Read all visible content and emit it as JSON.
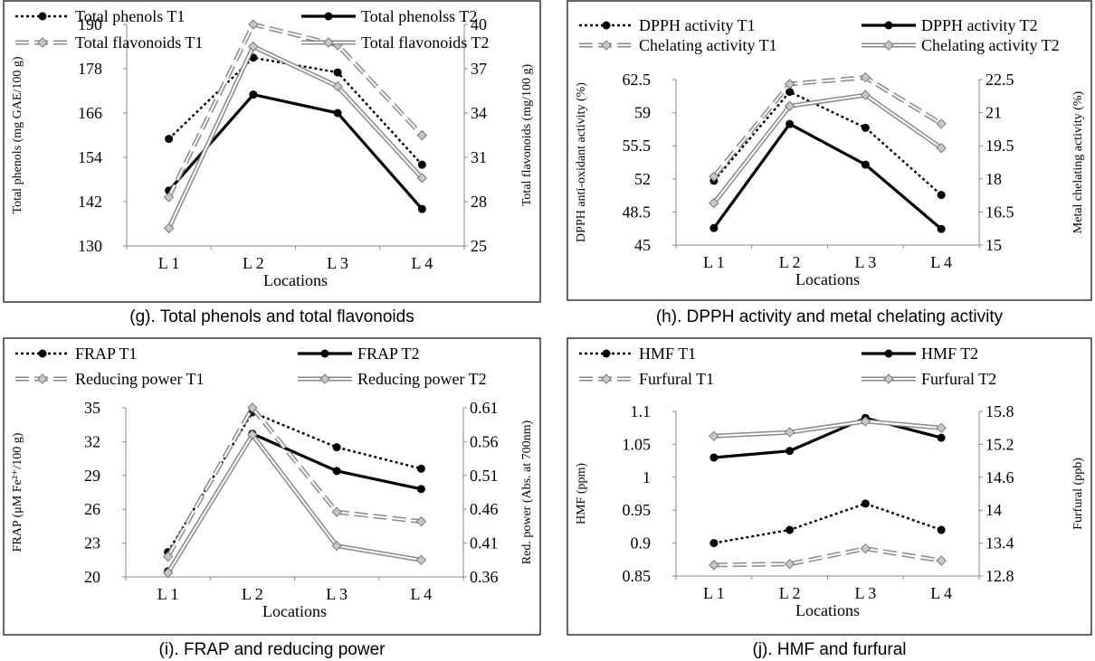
{
  "chart_data": [
    {
      "type": "line",
      "caption": "(g). Total phenols and total flavonoids",
      "xlabel": "Locations",
      "ylabel": "Total phenols (mg GAE/100 g)",
      "y2label": "Total flavonoids (mg/100 g)",
      "categories": [
        "L1",
        "L2",
        "L3",
        "L4"
      ],
      "ylim": [
        130,
        190
      ],
      "yticks": [
        "130",
        "142",
        "154",
        "166",
        "178",
        "190"
      ],
      "y2lim": [
        25,
        40
      ],
      "y2ticks": [
        "25",
        "28",
        "31",
        "34",
        "37",
        "40"
      ],
      "series": [
        {
          "name": "Total phenols T1",
          "axis": "left",
          "style": "dotted-circle",
          "values": [
            159,
            181,
            177,
            152
          ]
        },
        {
          "name": "Total phenolss T2",
          "axis": "left",
          "style": "solid-circle",
          "values": [
            145,
            171,
            166,
            140
          ]
        },
        {
          "name": "Total flavonoids T1",
          "axis": "right",
          "style": "dashed-diamond",
          "values": [
            28.3,
            40.0,
            38.6,
            32.5
          ]
        },
        {
          "name": "Total flavonoids T2",
          "axis": "right",
          "style": "double-diamond",
          "values": [
            26.2,
            38.5,
            35.8,
            29.6
          ]
        }
      ]
    },
    {
      "type": "line",
      "caption": "(h). DPPH activity and metal chelating activity",
      "xlabel": "Locations",
      "ylabel": "DPPH anti-oxidant activity  (%)",
      "y2label": "Metal chelating activity (%)",
      "categories": [
        "L1",
        "L2",
        "L3",
        "L4"
      ],
      "ylim": [
        45,
        62.5
      ],
      "yticks": [
        "45",
        "48.5",
        "52",
        "55.5",
        "59",
        "62.5"
      ],
      "y2lim": [
        15,
        22.5
      ],
      "y2ticks": [
        "15",
        "16.5",
        "18",
        "19.5",
        "21",
        "22.5"
      ],
      "series": [
        {
          "name": "DPPH activity  T1",
          "axis": "left",
          "style": "dotted-circle",
          "values": [
            51.8,
            61.2,
            57.4,
            50.3
          ]
        },
        {
          "name": "DPPH activity T2",
          "axis": "left",
          "style": "solid-circle",
          "values": [
            46.8,
            57.8,
            53.5,
            46.7
          ]
        },
        {
          "name": "Chelating activity T1",
          "axis": "right",
          "style": "dashed-diamond",
          "values": [
            18.1,
            22.3,
            22.6,
            20.5
          ]
        },
        {
          "name": "Chelating activity T2",
          "axis": "right",
          "style": "double-diamond",
          "values": [
            16.9,
            21.3,
            21.8,
            19.4
          ]
        }
      ]
    },
    {
      "type": "line",
      "caption": "(i). FRAP and reducing power",
      "xlabel": "Locations",
      "ylabel": "FRAP (μM Fe²⁺/100 g)",
      "y2label": "Red. power (Abs. at 700nm)",
      "categories": [
        "L1",
        "L2",
        "L3",
        "L4"
      ],
      "ylim": [
        20,
        35
      ],
      "yticks": [
        "20",
        "23",
        "26",
        "29",
        "32",
        "35"
      ],
      "y2lim": [
        0.36,
        0.61
      ],
      "y2ticks": [
        "0.36",
        "0.41",
        "0.46",
        "0.51",
        "0.56",
        "0.61"
      ],
      "series": [
        {
          "name": "FRAP T1",
          "axis": "left",
          "style": "dotted-circle",
          "values": [
            22.2,
            34.6,
            31.5,
            29.6
          ]
        },
        {
          "name": "FRAP T2",
          "axis": "left",
          "style": "solid-circle",
          "values": [
            20.5,
            32.7,
            29.4,
            27.8
          ]
        },
        {
          "name": "Reducing power T1",
          "axis": "right",
          "style": "dashed-diamond",
          "values": [
            0.39,
            0.61,
            0.456,
            0.442
          ]
        },
        {
          "name": "Reducing power T2",
          "axis": "right",
          "style": "double-diamond",
          "values": [
            0.366,
            0.57,
            0.406,
            0.385
          ]
        }
      ]
    },
    {
      "type": "line",
      "caption": "(j). HMF and furfural",
      "xlabel": "Locations",
      "ylabel": "HMF (ppm)",
      "y2label": "Furfural (ppb)",
      "categories": [
        "L1",
        "L2",
        "L3",
        "L4"
      ],
      "ylim": [
        0.85,
        1.1
      ],
      "yticks": [
        "0.85",
        "0.9",
        "0.95",
        "1",
        "1.05",
        "1.1"
      ],
      "y2lim": [
        12.8,
        15.8
      ],
      "y2ticks": [
        "12.8",
        "13.4",
        "14",
        "14.6",
        "15.2",
        "15.8"
      ],
      "series": [
        {
          "name": "HMF T1",
          "axis": "left",
          "style": "dotted-circle",
          "values": [
            0.9,
            0.92,
            0.96,
            0.92
          ]
        },
        {
          "name": "HMF T2",
          "axis": "left",
          "style": "solid-circle",
          "values": [
            1.03,
            1.04,
            1.09,
            1.06
          ]
        },
        {
          "name": "Furfural T1",
          "axis": "right",
          "style": "dashed-diamond",
          "values": [
            13.0,
            13.02,
            13.3,
            13.08
          ]
        },
        {
          "name": "Furfural T2",
          "axis": "right",
          "style": "double-diamond",
          "values": [
            15.35,
            15.42,
            15.62,
            15.5
          ]
        }
      ]
    }
  ]
}
